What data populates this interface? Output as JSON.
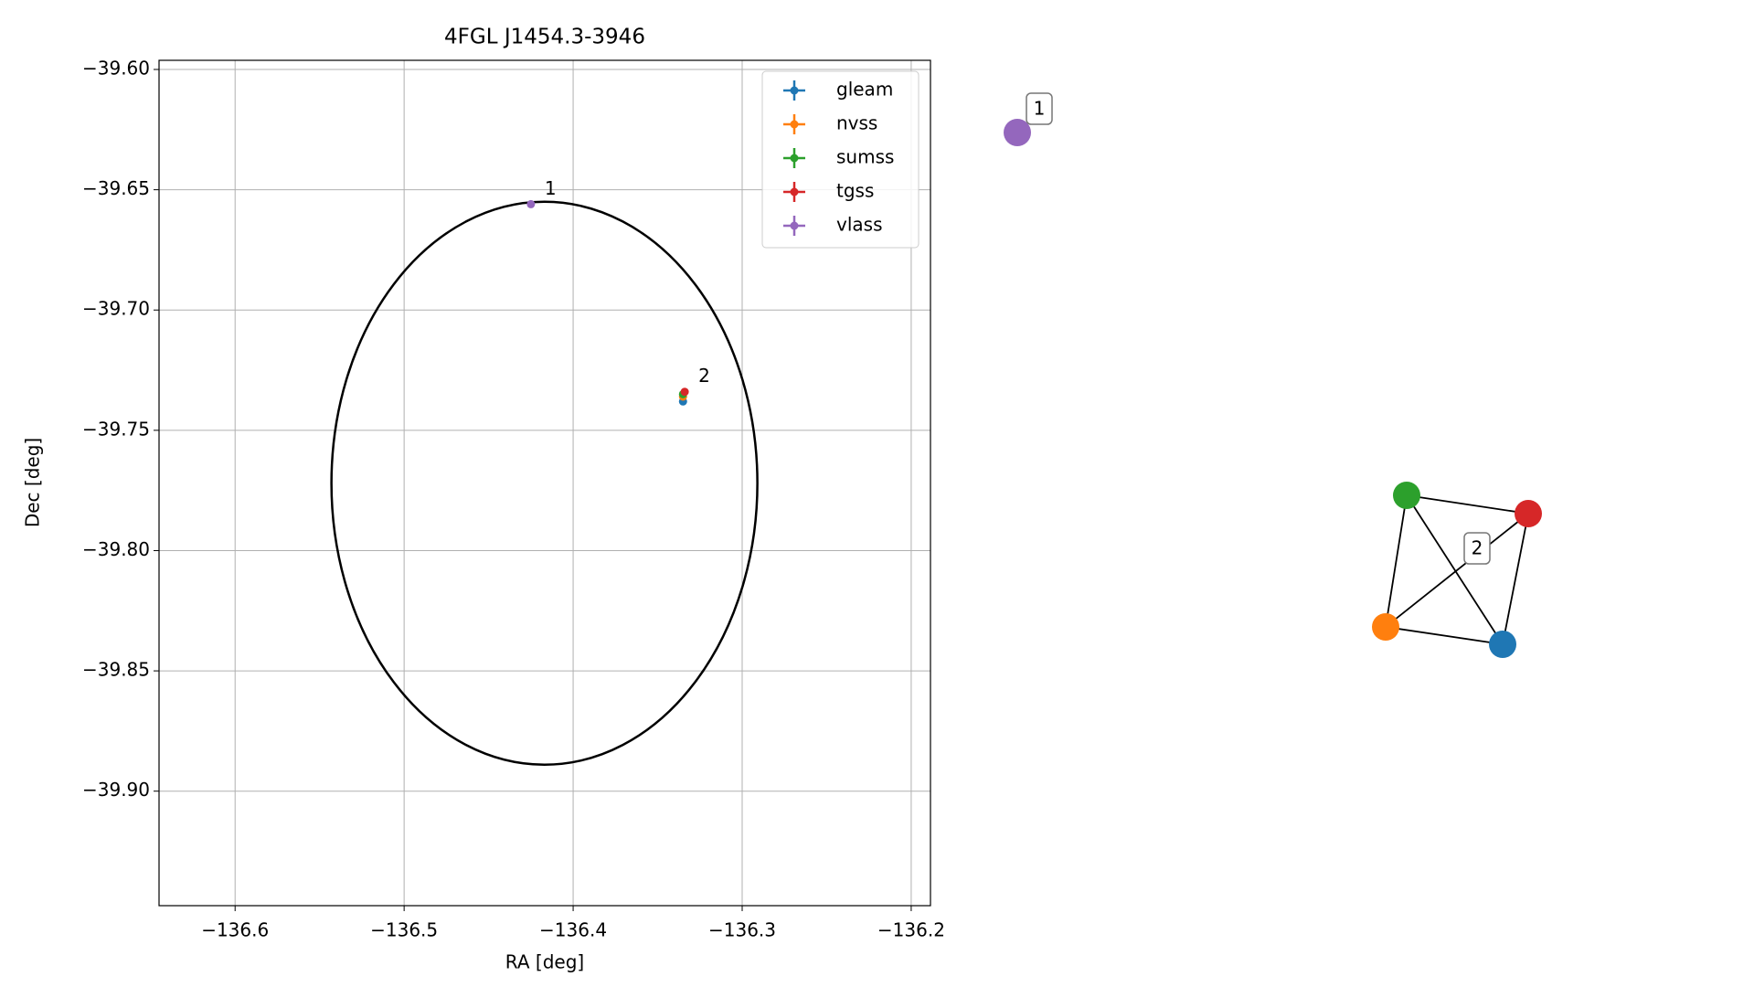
{
  "chart_data": [
    {
      "type": "scatter",
      "title": "4FGL J1454.3-3946",
      "xlabel": "RA [deg]",
      "ylabel": "Dec [deg]",
      "xlim": [
        -136.645,
        -136.1886
      ],
      "ylim": [
        -39.9476,
        -39.5962
      ],
      "xticks": [
        {
          "value": -136.6,
          "label": "−136.6"
        },
        {
          "value": -136.5,
          "label": "−136.5"
        },
        {
          "value": -136.4,
          "label": "−136.4"
        },
        {
          "value": -136.3,
          "label": "−136.3"
        },
        {
          "value": -136.2,
          "label": "−136.2"
        }
      ],
      "yticks": [
        {
          "value": -39.6,
          "label": "−39.60"
        },
        {
          "value": -39.65,
          "label": "−39.65"
        },
        {
          "value": -39.7,
          "label": "−39.70"
        },
        {
          "value": -39.75,
          "label": "−39.75"
        },
        {
          "value": -39.8,
          "label": "−39.80"
        },
        {
          "value": -39.85,
          "label": "−39.85"
        },
        {
          "value": -39.9,
          "label": "−39.90"
        }
      ],
      "grid": true,
      "legend": "upper right",
      "series": [
        {
          "name": "gleam",
          "color": "#1f77b4",
          "x": [
            -136.335
          ],
          "values": [
            -39.738
          ]
        },
        {
          "name": "nvss",
          "color": "#ff7f0e",
          "x": [
            -136.335
          ],
          "values": [
            -39.736
          ]
        },
        {
          "name": "sumss",
          "color": "#2ca02c",
          "x": [
            -136.335
          ],
          "values": [
            -39.735
          ]
        },
        {
          "name": "tgss",
          "color": "#d62728",
          "x": [
            -136.334
          ],
          "values": [
            -39.734
          ]
        },
        {
          "name": "vlass",
          "color": "#9467bd",
          "x": [
            -136.425
          ],
          "values": [
            -39.656
          ]
        }
      ],
      "annotations": [
        "1",
        "2"
      ],
      "ellipse": {
        "ra": -136.417,
        "dec": -39.772,
        "width": 0.252,
        "height": 0.234
      }
    },
    {
      "type": "network",
      "labels": [
        "1",
        "2"
      ],
      "nodes": [
        {
          "color": "#9467bd"
        },
        {
          "color": "#2ca02c"
        },
        {
          "color": "#d62728"
        },
        {
          "color": "#ff7f0e"
        },
        {
          "color": "#1f77b4"
        }
      ],
      "edges": [
        [
          1,
          2
        ],
        [
          1,
          3
        ],
        [
          1,
          4
        ],
        [
          2,
          3
        ],
        [
          2,
          4
        ],
        [
          3,
          4
        ]
      ]
    }
  ]
}
